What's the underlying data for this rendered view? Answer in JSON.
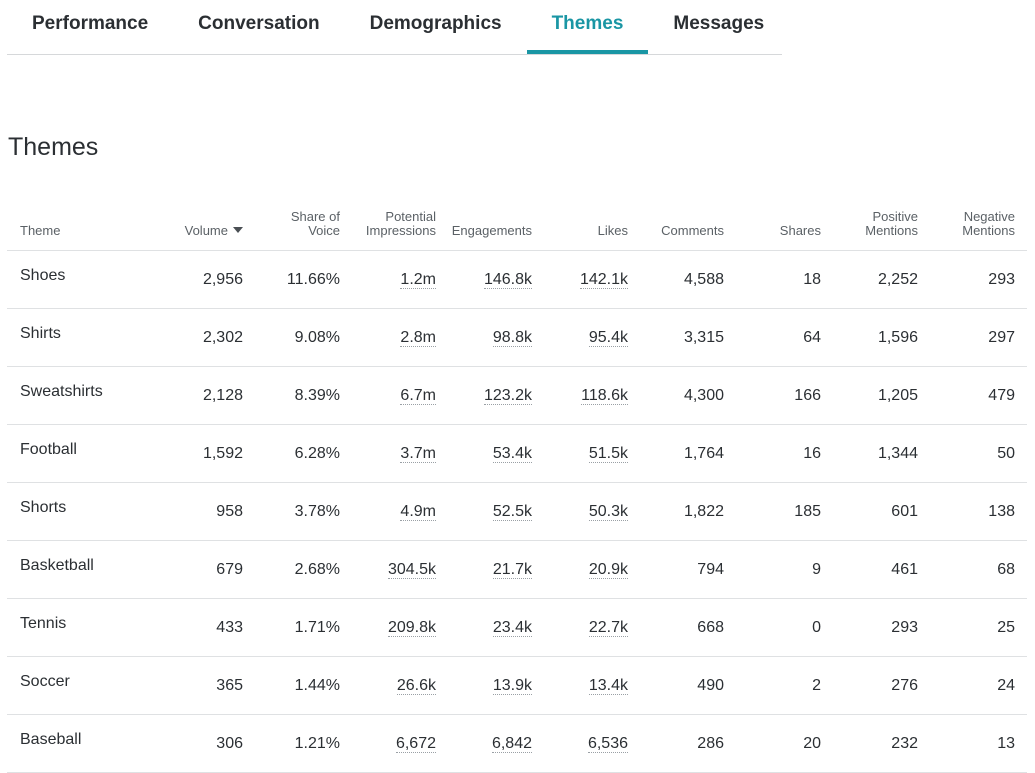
{
  "tabs": [
    {
      "label": "Performance",
      "active": false
    },
    {
      "label": "Conversation",
      "active": false
    },
    {
      "label": "Demographics",
      "active": false
    },
    {
      "label": "Themes",
      "active": true
    },
    {
      "label": "Messages",
      "active": false
    }
  ],
  "section_title": "Themes",
  "colors": {
    "accent": "#1a96a4",
    "text": "#2b2f33",
    "divider": "#dfe1e3"
  },
  "table": {
    "headers": {
      "theme": "Theme",
      "volume": "Volume",
      "share_l1": "Share of",
      "share_l2": "Voice",
      "potential_l1": "Potential",
      "potential_l2": "Impressions",
      "engagements": "Engagements",
      "likes": "Likes",
      "comments": "Comments",
      "shares": "Shares",
      "positive_l1": "Positive",
      "positive_l2": "Mentions",
      "negative_l1": "Negative",
      "negative_l2": "Mentions"
    },
    "sort_icon": "caret-down-icon",
    "rows": [
      {
        "theme": "Shoes",
        "volume": "2,956",
        "share": "11.66%",
        "impressions": "1.2m",
        "engagements": "146.8k",
        "likes": "142.1k",
        "comments": "4,588",
        "shares": "18",
        "positive": "2,252",
        "negative": "293"
      },
      {
        "theme": "Shirts",
        "volume": "2,302",
        "share": "9.08%",
        "impressions": "2.8m",
        "engagements": "98.8k",
        "likes": "95.4k",
        "comments": "3,315",
        "shares": "64",
        "positive": "1,596",
        "negative": "297"
      },
      {
        "theme": "Sweatshirts",
        "volume": "2,128",
        "share": "8.39%",
        "impressions": "6.7m",
        "engagements": "123.2k",
        "likes": "118.6k",
        "comments": "4,300",
        "shares": "166",
        "positive": "1,205",
        "negative": "479"
      },
      {
        "theme": "Football",
        "volume": "1,592",
        "share": "6.28%",
        "impressions": "3.7m",
        "engagements": "53.4k",
        "likes": "51.5k",
        "comments": "1,764",
        "shares": "16",
        "positive": "1,344",
        "negative": "50"
      },
      {
        "theme": "Shorts",
        "volume": "958",
        "share": "3.78%",
        "impressions": "4.9m",
        "engagements": "52.5k",
        "likes": "50.3k",
        "comments": "1,822",
        "shares": "185",
        "positive": "601",
        "negative": "138"
      },
      {
        "theme": "Basketball",
        "volume": "679",
        "share": "2.68%",
        "impressions": "304.5k",
        "engagements": "21.7k",
        "likes": "20.9k",
        "comments": "794",
        "shares": "9",
        "positive": "461",
        "negative": "68"
      },
      {
        "theme": "Tennis",
        "volume": "433",
        "share": "1.71%",
        "impressions": "209.8k",
        "engagements": "23.4k",
        "likes": "22.7k",
        "comments": "668",
        "shares": "0",
        "positive": "293",
        "negative": "25"
      },
      {
        "theme": "Soccer",
        "volume": "365",
        "share": "1.44%",
        "impressions": "26.6k",
        "engagements": "13.9k",
        "likes": "13.4k",
        "comments": "490",
        "shares": "2",
        "positive": "276",
        "negative": "24"
      },
      {
        "theme": "Baseball",
        "volume": "306",
        "share": "1.21%",
        "impressions": "6,672",
        "engagements": "6,842",
        "likes": "6,536",
        "comments": "286",
        "shares": "20",
        "positive": "232",
        "negative": "13"
      }
    ]
  }
}
